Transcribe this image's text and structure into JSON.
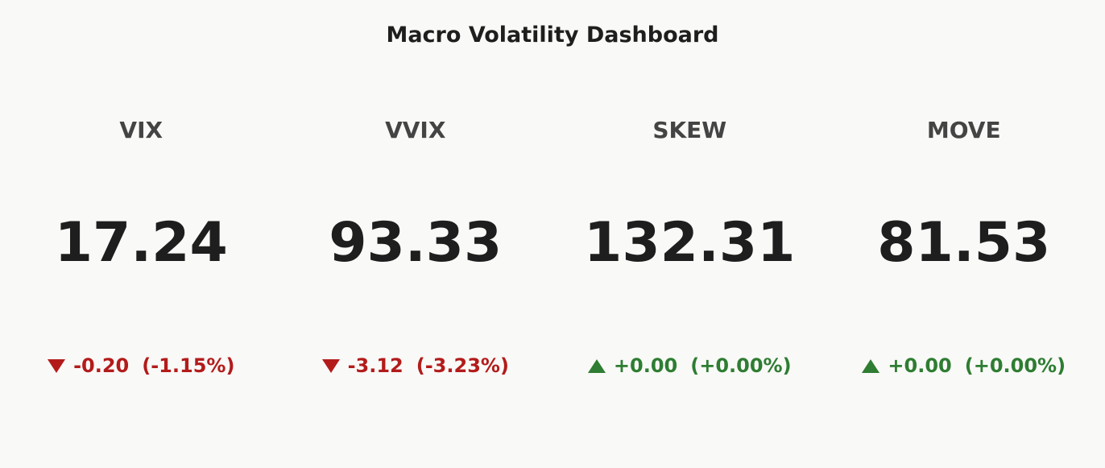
{
  "header": {
    "title": "Macro Volatility Dashboard"
  },
  "cards": [
    {
      "label": "VIX",
      "value": "17.24",
      "change": "-0.20",
      "change_pct": "(-1.15%)",
      "color": "#b31b1b"
    },
    {
      "label": "VVIX",
      "value": "93.33",
      "change": "-3.12",
      "change_pct": "(-3.23%)",
      "color": "#b31b1b"
    },
    {
      "label": "SKEW",
      "value": "132.31",
      "change": "+0.00",
      "change_pct": "(+0.00%)",
      "color": "#2e7d32"
    },
    {
      "label": "MOVE",
      "value": "81.53",
      "change": "+0.00",
      "change_pct": "(+0.00%)",
      "color": "#2e7d32"
    }
  ]
}
